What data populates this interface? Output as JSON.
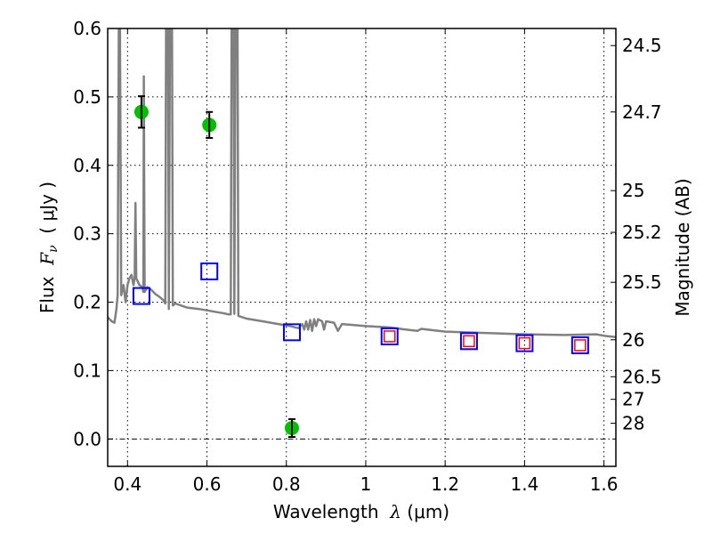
{
  "chart_data": {
    "type": "scatter",
    "title": "",
    "xlabel": "Wavelength  λ (μm)",
    "xlabel_parts": {
      "prefix": "Wavelength  ",
      "symbol": "λ",
      "suffix": " (μm)"
    },
    "ylabel": "Flux  Fν  ( μJy )",
    "ylabel_parts": {
      "prefix": "Flux  ",
      "symbol": "F",
      "sub": "ν",
      "suffix": "  ( μJy )"
    },
    "y2label": "Magnitude (AB)",
    "xlim": [
      0.35,
      1.63
    ],
    "ylim": [
      -0.04,
      0.6
    ],
    "grid": true,
    "x_ticks": [
      {
        "value": 0.4,
        "label": "0.4"
      },
      {
        "value": 0.6,
        "label": "0.6"
      },
      {
        "value": 0.8,
        "label": "0.8"
      },
      {
        "value": 1.0,
        "label": "1"
      },
      {
        "value": 1.2,
        "label": "1.2"
      },
      {
        "value": 1.4,
        "label": "1.4"
      },
      {
        "value": 1.6,
        "label": "1.6"
      }
    ],
    "y_ticks": [
      {
        "value": 0.0,
        "label": "0.0"
      },
      {
        "value": 0.1,
        "label": "0.1"
      },
      {
        "value": 0.2,
        "label": "0.2"
      },
      {
        "value": 0.3,
        "label": "0.3"
      },
      {
        "value": 0.4,
        "label": "0.4"
      },
      {
        "value": 0.5,
        "label": "0.5"
      },
      {
        "value": 0.6,
        "label": "0.6"
      }
    ],
    "y2_ticks": [
      {
        "flux": 0.575,
        "label": "24.5"
      },
      {
        "flux": 0.478,
        "label": "24.7"
      },
      {
        "flux": 0.363,
        "label": "25"
      },
      {
        "flux": 0.302,
        "label": "25.2"
      },
      {
        "flux": 0.229,
        "label": "25.5"
      },
      {
        "flux": 0.145,
        "label": "26"
      },
      {
        "flux": 0.091,
        "label": "26.5"
      },
      {
        "flux": 0.058,
        "label": "27"
      },
      {
        "flux": 0.023,
        "label": "28"
      }
    ],
    "series": [
      {
        "name": "observed photometry",
        "marker": "circle",
        "color": "#00c000",
        "points": [
          {
            "x": 0.435,
            "y": 0.478,
            "yerr": 0.023
          },
          {
            "x": 0.606,
            "y": 0.459,
            "yerr": 0.019
          },
          {
            "x": 0.814,
            "y": 0.016,
            "yerr": 0.013
          }
        ]
      },
      {
        "name": "model photometry (blue)",
        "marker": "square-open",
        "color": "#0000ff",
        "points": [
          {
            "x": 0.435,
            "y": 0.209
          },
          {
            "x": 0.606,
            "y": 0.245
          },
          {
            "x": 0.814,
            "y": 0.156
          },
          {
            "x": 1.06,
            "y": 0.15
          },
          {
            "x": 1.26,
            "y": 0.143
          },
          {
            "x": 1.4,
            "y": 0.14
          },
          {
            "x": 1.54,
            "y": 0.137
          }
        ]
      },
      {
        "name": "model photometry (red)",
        "marker": "square-open-small",
        "color": "#ff0000",
        "points": [
          {
            "x": 1.06,
            "y": 0.15
          },
          {
            "x": 1.26,
            "y": 0.143
          },
          {
            "x": 1.4,
            "y": 0.14
          },
          {
            "x": 1.54,
            "y": 0.137
          }
        ]
      },
      {
        "name": "model spectrum",
        "type": "line",
        "color": "#808080",
        "points": [
          [
            0.35,
            0.178
          ],
          [
            0.36,
            0.172
          ],
          [
            0.367,
            0.17
          ],
          [
            0.372,
            0.19
          ],
          [
            0.375,
            0.21
          ],
          [
            0.378,
            0.6
          ],
          [
            0.381,
            0.6
          ],
          [
            0.384,
            0.21
          ],
          [
            0.39,
            0.225
          ],
          [
            0.395,
            0.2
          ],
          [
            0.4,
            0.225
          ],
          [
            0.405,
            0.235
          ],
          [
            0.41,
            0.24
          ],
          [
            0.415,
            0.225
          ],
          [
            0.418,
            0.235
          ],
          [
            0.42,
            0.345
          ],
          [
            0.422,
            0.235
          ],
          [
            0.43,
            0.225
          ],
          [
            0.437,
            0.222
          ],
          [
            0.44,
            0.215
          ],
          [
            0.441,
            0.53
          ],
          [
            0.443,
            0.215
          ],
          [
            0.45,
            0.222
          ],
          [
            0.46,
            0.218
          ],
          [
            0.47,
            0.212
          ],
          [
            0.48,
            0.208
          ],
          [
            0.49,
            0.203
          ],
          [
            0.495,
            0.198
          ],
          [
            0.497,
            0.6
          ],
          [
            0.502,
            0.6
          ],
          [
            0.504,
            0.19
          ],
          [
            0.507,
            0.6
          ],
          [
            0.512,
            0.6
          ],
          [
            0.514,
            0.195
          ],
          [
            0.52,
            0.198
          ],
          [
            0.55,
            0.192
          ],
          [
            0.58,
            0.19
          ],
          [
            0.6,
            0.188
          ],
          [
            0.62,
            0.186
          ],
          [
            0.64,
            0.184
          ],
          [
            0.655,
            0.182
          ],
          [
            0.66,
            0.182
          ],
          [
            0.662,
            0.6
          ],
          [
            0.667,
            0.6
          ],
          [
            0.669,
            0.183
          ],
          [
            0.672,
            0.6
          ],
          [
            0.677,
            0.6
          ],
          [
            0.679,
            0.18
          ],
          [
            0.7,
            0.176
          ],
          [
            0.74,
            0.172
          ],
          [
            0.78,
            0.168
          ],
          [
            0.81,
            0.165
          ],
          [
            0.83,
            0.162
          ],
          [
            0.84,
            0.168
          ],
          [
            0.845,
            0.16
          ],
          [
            0.85,
            0.172
          ],
          [
            0.855,
            0.16
          ],
          [
            0.86,
            0.174
          ],
          [
            0.865,
            0.158
          ],
          [
            0.87,
            0.175
          ],
          [
            0.875,
            0.165
          ],
          [
            0.88,
            0.175
          ],
          [
            0.89,
            0.172
          ],
          [
            0.895,
            0.16
          ],
          [
            0.9,
            0.172
          ],
          [
            0.92,
            0.17
          ],
          [
            0.93,
            0.158
          ],
          [
            0.94,
            0.168
          ],
          [
            1.0,
            0.165
          ],
          [
            1.06,
            0.163
          ],
          [
            1.1,
            0.16
          ],
          [
            1.13,
            0.158
          ],
          [
            1.14,
            0.161
          ],
          [
            1.2,
            0.157
          ],
          [
            1.3,
            0.155
          ],
          [
            1.4,
            0.153
          ],
          [
            1.5,
            0.152
          ],
          [
            1.58,
            0.153
          ],
          [
            1.6,
            0.151
          ],
          [
            1.63,
            0.149
          ]
        ]
      }
    ]
  }
}
